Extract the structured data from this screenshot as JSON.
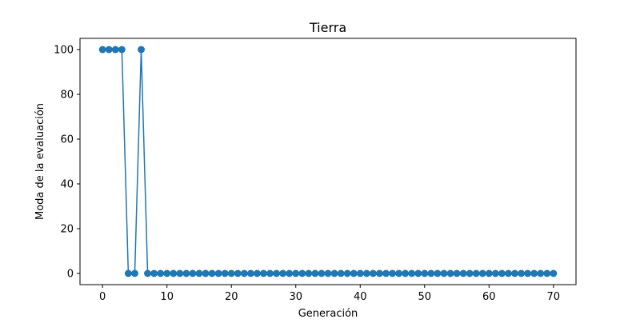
{
  "chart_data": {
    "type": "line",
    "title": "Tierra",
    "xlabel": "Generación",
    "ylabel": "Moda de la evaluación",
    "xlim": [
      -3.5,
      73.5
    ],
    "ylim": [
      -5,
      105
    ],
    "xticks": [
      0,
      10,
      20,
      30,
      40,
      50,
      60,
      70
    ],
    "yticks": [
      0,
      20,
      40,
      60,
      80,
      100
    ],
    "grid": false,
    "marker": "circle",
    "colors": {
      "series": "#1f77b4",
      "axes": "#000000",
      "background": "#ffffff"
    },
    "series": [
      {
        "x": [
          0,
          1,
          2,
          3,
          4,
          5,
          6,
          7,
          8,
          9,
          10,
          11,
          12,
          13,
          14,
          15,
          16,
          17,
          18,
          19,
          20,
          21,
          22,
          23,
          24,
          25,
          26,
          27,
          28,
          29,
          30,
          31,
          32,
          33,
          34,
          35,
          36,
          37,
          38,
          39,
          40,
          41,
          42,
          43,
          44,
          45,
          46,
          47,
          48,
          49,
          50,
          51,
          52,
          53,
          54,
          55,
          56,
          57,
          58,
          59,
          60,
          61,
          62,
          63,
          64,
          65,
          66,
          67,
          68,
          69,
          70
        ],
        "values": [
          100,
          100,
          100,
          100,
          0,
          0,
          100,
          0,
          0,
          0,
          0,
          0,
          0,
          0,
          0,
          0,
          0,
          0,
          0,
          0,
          0,
          0,
          0,
          0,
          0,
          0,
          0,
          0,
          0,
          0,
          0,
          0,
          0,
          0,
          0,
          0,
          0,
          0,
          0,
          0,
          0,
          0,
          0,
          0,
          0,
          0,
          0,
          0,
          0,
          0,
          0,
          0,
          0,
          0,
          0,
          0,
          0,
          0,
          0,
          0,
          0,
          0,
          0,
          0,
          0,
          0,
          0,
          0,
          0,
          0,
          0
        ]
      }
    ]
  }
}
